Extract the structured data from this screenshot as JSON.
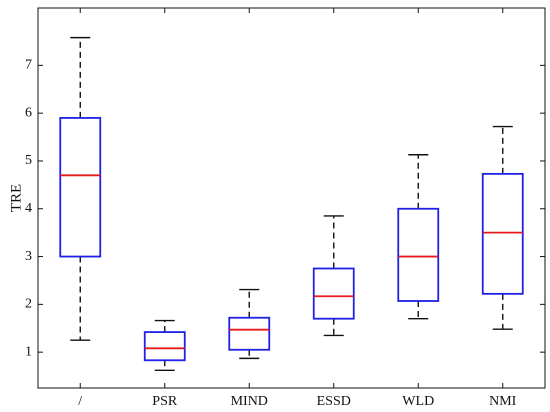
{
  "chart_data": {
    "type": "box",
    "title": "",
    "xlabel": "",
    "ylabel": "TRE",
    "ylim": [
      0.25,
      8.2
    ],
    "yticks": [
      1,
      2,
      3,
      4,
      5,
      6,
      7
    ],
    "grid": false,
    "categories": [
      "/",
      "PSR",
      "MIND",
      "ESSD",
      "WLD",
      "NMI"
    ],
    "boxes": [
      {
        "label": "/",
        "whisker_low": 1.25,
        "q1": 3.0,
        "median": 4.7,
        "q3": 5.9,
        "whisker_high": 7.58
      },
      {
        "label": "PSR",
        "whisker_low": 0.62,
        "q1": 0.83,
        "median": 1.08,
        "q3": 1.42,
        "whisker_high": 1.66
      },
      {
        "label": "MIND",
        "whisker_low": 0.87,
        "q1": 1.05,
        "median": 1.47,
        "q3": 1.72,
        "whisker_high": 2.31
      },
      {
        "label": "ESSD",
        "whisker_low": 1.35,
        "q1": 1.7,
        "median": 2.17,
        "q3": 2.75,
        "whisker_high": 3.85
      },
      {
        "label": "WLD",
        "whisker_low": 1.7,
        "q1": 2.07,
        "median": 3.0,
        "q3": 4.0,
        "whisker_high": 5.13
      },
      {
        "label": "NMI",
        "whisker_low": 1.48,
        "q1": 2.22,
        "median": 3.5,
        "q3": 4.73,
        "whisker_high": 5.72
      }
    ],
    "colors": {
      "box": "#1f1fe6",
      "median": "#e41a1c",
      "whisker": "#111111",
      "axis": "#111111"
    }
  }
}
